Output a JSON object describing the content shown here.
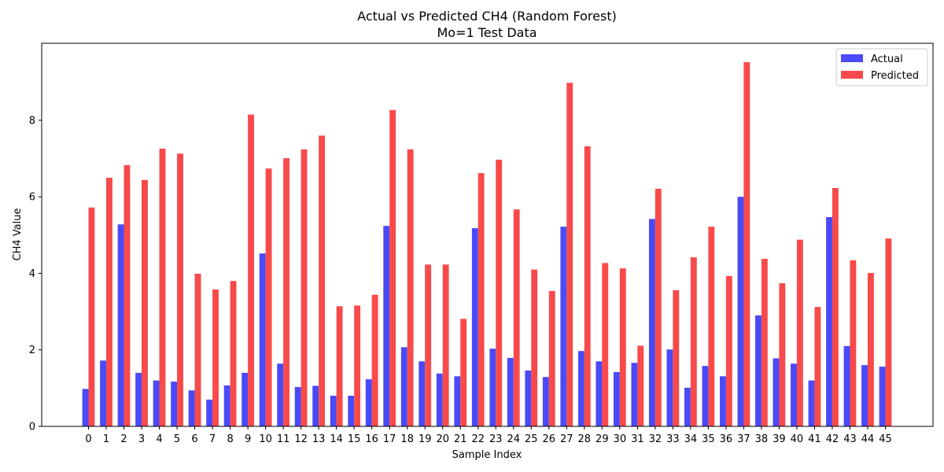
{
  "chart_data": {
    "type": "bar",
    "title": "Actual vs Predicted CH4 (Random Forest)",
    "subtitle": "Mo=1 Test Data",
    "xlabel": "Sample Index",
    "ylabel": "CH4 Value",
    "ylim": [
      0,
      10
    ],
    "yticks": [
      0,
      2,
      4,
      6,
      8
    ],
    "legend_position": "top-right",
    "categories": [
      "0",
      "1",
      "2",
      "3",
      "4",
      "5",
      "6",
      "7",
      "8",
      "9",
      "10",
      "11",
      "12",
      "13",
      "14",
      "15",
      "16",
      "17",
      "18",
      "19",
      "20",
      "21",
      "22",
      "23",
      "24",
      "25",
      "26",
      "27",
      "28",
      "29",
      "30",
      "31",
      "32",
      "33",
      "34",
      "35",
      "36",
      "37",
      "38",
      "39",
      "40",
      "41",
      "42",
      "43",
      "44",
      "45"
    ],
    "series": [
      {
        "name": "Actual",
        "color": "#4a4af8",
        "values": [
          0.98,
          1.72,
          5.28,
          1.4,
          1.2,
          1.17,
          0.94,
          0.7,
          1.07,
          1.4,
          4.52,
          1.64,
          1.03,
          1.06,
          0.8,
          0.8,
          1.23,
          5.24,
          2.07,
          1.7,
          1.38,
          1.31,
          5.18,
          2.03,
          1.79,
          1.46,
          1.29,
          5.22,
          1.97,
          1.7,
          1.42,
          1.66,
          5.42,
          2.01,
          1.01,
          1.58,
          1.31,
          6.0,
          2.9,
          1.78,
          1.64,
          1.2,
          5.47,
          2.1,
          1.6,
          1.56
        ]
      },
      {
        "name": "Predicted",
        "color": "#f84a4a",
        "values": [
          5.72,
          6.5,
          6.83,
          6.44,
          7.26,
          7.13,
          3.99,
          3.58,
          3.8,
          8.15,
          6.74,
          7.01,
          7.24,
          7.6,
          3.14,
          3.16,
          3.44,
          8.27,
          7.24,
          4.23,
          4.23,
          2.81,
          6.62,
          6.97,
          5.67,
          4.1,
          3.54,
          8.98,
          7.32,
          4.27,
          4.13,
          2.11,
          6.21,
          3.56,
          4.42,
          5.22,
          3.93,
          9.52,
          4.38,
          3.74,
          4.88,
          3.12,
          6.23,
          4.34,
          4.01,
          4.91
        ]
      }
    ]
  }
}
